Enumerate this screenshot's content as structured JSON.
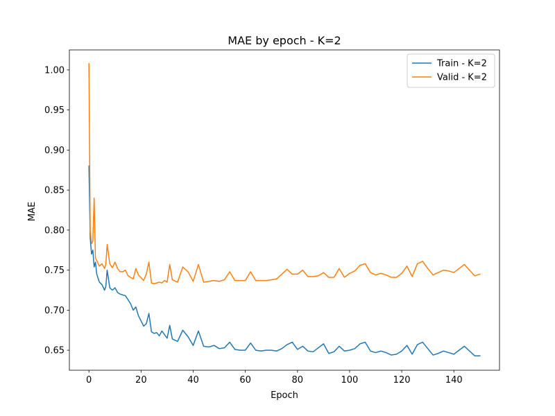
{
  "chart_data": {
    "type": "line",
    "title": "MAE by epoch - K=2",
    "xlabel": "Epoch",
    "ylabel": "MAE",
    "xlim": [
      -7.5,
      157.5
    ],
    "ylim": [
      0.625,
      1.025
    ],
    "xticks": [
      0,
      20,
      40,
      60,
      80,
      100,
      120,
      140
    ],
    "yticks": [
      0.65,
      0.7,
      0.75,
      0.8,
      0.85,
      0.9,
      0.95,
      1.0
    ],
    "ytick_labels": [
      "0.65",
      "0.70",
      "0.75",
      "0.80",
      "0.85",
      "0.90",
      "0.95",
      "1.00"
    ],
    "grid": false,
    "legend_position": "upper right",
    "series": [
      {
        "name": "Train - K=2",
        "color": "#1f77b4",
        "points": [
          [
            0,
            0.88
          ],
          [
            0.5,
            0.79
          ],
          [
            1,
            0.77
          ],
          [
            1.5,
            0.775
          ],
          [
            2,
            0.754
          ],
          [
            2.5,
            0.76
          ],
          [
            3,
            0.745
          ],
          [
            4,
            0.735
          ],
          [
            5,
            0.732
          ],
          [
            6,
            0.725
          ],
          [
            6.5,
            0.73
          ],
          [
            7,
            0.75
          ],
          [
            8,
            0.728
          ],
          [
            9,
            0.725
          ],
          [
            10,
            0.728
          ],
          [
            11,
            0.722
          ],
          [
            12,
            0.72
          ],
          [
            14,
            0.718
          ],
          [
            16,
            0.708
          ],
          [
            17,
            0.7
          ],
          [
            18,
            0.704
          ],
          [
            19,
            0.693
          ],
          [
            21,
            0.68
          ],
          [
            22,
            0.683
          ],
          [
            23,
            0.696
          ],
          [
            24,
            0.673
          ],
          [
            25,
            0.671
          ],
          [
            26,
            0.672
          ],
          [
            27,
            0.668
          ],
          [
            28,
            0.674
          ],
          [
            30,
            0.665
          ],
          [
            31,
            0.681
          ],
          [
            32,
            0.664
          ],
          [
            34,
            0.661
          ],
          [
            36,
            0.675
          ],
          [
            38,
            0.667
          ],
          [
            40,
            0.656
          ],
          [
            42,
            0.674
          ],
          [
            44,
            0.655
          ],
          [
            46,
            0.654
          ],
          [
            48,
            0.656
          ],
          [
            50,
            0.652
          ],
          [
            52,
            0.653
          ],
          [
            54,
            0.66
          ],
          [
            56,
            0.651
          ],
          [
            58,
            0.65
          ],
          [
            60,
            0.65
          ],
          [
            62,
            0.659
          ],
          [
            64,
            0.65
          ],
          [
            66,
            0.649
          ],
          [
            68,
            0.65
          ],
          [
            70,
            0.65
          ],
          [
            72,
            0.649
          ],
          [
            74,
            0.652
          ],
          [
            76,
            0.657
          ],
          [
            78,
            0.66
          ],
          [
            80,
            0.651
          ],
          [
            82,
            0.655
          ],
          [
            84,
            0.649
          ],
          [
            86,
            0.648
          ],
          [
            88,
            0.653
          ],
          [
            90,
            0.658
          ],
          [
            92,
            0.646
          ],
          [
            94,
            0.648
          ],
          [
            96,
            0.655
          ],
          [
            98,
            0.649
          ],
          [
            100,
            0.65
          ],
          [
            102,
            0.652
          ],
          [
            104,
            0.658
          ],
          [
            106,
            0.66
          ],
          [
            108,
            0.649
          ],
          [
            110,
            0.647
          ],
          [
            112,
            0.649
          ],
          [
            114,
            0.647
          ],
          [
            116,
            0.644
          ],
          [
            118,
            0.645
          ],
          [
            120,
            0.649
          ],
          [
            122,
            0.656
          ],
          [
            124,
            0.645
          ],
          [
            126,
            0.657
          ],
          [
            128,
            0.66
          ],
          [
            130,
            0.652
          ],
          [
            132,
            0.644
          ],
          [
            134,
            0.646
          ],
          [
            136,
            0.649
          ],
          [
            138,
            0.647
          ],
          [
            140,
            0.645
          ],
          [
            142,
            0.65
          ],
          [
            144,
            0.655
          ],
          [
            146,
            0.649
          ],
          [
            148,
            0.643
          ],
          [
            150,
            0.643
          ]
        ]
      },
      {
        "name": "Valid - K=2",
        "color": "#ff7f0e",
        "points": [
          [
            0,
            1.008
          ],
          [
            0.5,
            0.8
          ],
          [
            1,
            0.783
          ],
          [
            1.5,
            0.786
          ],
          [
            2,
            0.84
          ],
          [
            2.5,
            0.765
          ],
          [
            3,
            0.762
          ],
          [
            4,
            0.755
          ],
          [
            5,
            0.758
          ],
          [
            6,
            0.752
          ],
          [
            6.5,
            0.758
          ],
          [
            7,
            0.782
          ],
          [
            8,
            0.758
          ],
          [
            9,
            0.753
          ],
          [
            10,
            0.76
          ],
          [
            11,
            0.752
          ],
          [
            12,
            0.748
          ],
          [
            13,
            0.748
          ],
          [
            14,
            0.75
          ],
          [
            15,
            0.743
          ],
          [
            17,
            0.739
          ],
          [
            18,
            0.752
          ],
          [
            19,
            0.744
          ],
          [
            21,
            0.737
          ],
          [
            22,
            0.745
          ],
          [
            23,
            0.76
          ],
          [
            24,
            0.734
          ],
          [
            25,
            0.733
          ],
          [
            26,
            0.734
          ],
          [
            27,
            0.735
          ],
          [
            28,
            0.734
          ],
          [
            29,
            0.737
          ],
          [
            30,
            0.735
          ],
          [
            31,
            0.757
          ],
          [
            32,
            0.738
          ],
          [
            34,
            0.735
          ],
          [
            36,
            0.754
          ],
          [
            38,
            0.748
          ],
          [
            40,
            0.736
          ],
          [
            42,
            0.757
          ],
          [
            44,
            0.735
          ],
          [
            46,
            0.736
          ],
          [
            48,
            0.737
          ],
          [
            50,
            0.736
          ],
          [
            52,
            0.738
          ],
          [
            54,
            0.748
          ],
          [
            56,
            0.737
          ],
          [
            58,
            0.737
          ],
          [
            60,
            0.737
          ],
          [
            62,
            0.748
          ],
          [
            64,
            0.737
          ],
          [
            66,
            0.737
          ],
          [
            68,
            0.737
          ],
          [
            70,
            0.738
          ],
          [
            72,
            0.739
          ],
          [
            74,
            0.745
          ],
          [
            76,
            0.751
          ],
          [
            78,
            0.745
          ],
          [
            80,
            0.745
          ],
          [
            82,
            0.75
          ],
          [
            84,
            0.742
          ],
          [
            86,
            0.742
          ],
          [
            88,
            0.743
          ],
          [
            90,
            0.747
          ],
          [
            92,
            0.741
          ],
          [
            94,
            0.741
          ],
          [
            96,
            0.752
          ],
          [
            98,
            0.741
          ],
          [
            100,
            0.746
          ],
          [
            102,
            0.749
          ],
          [
            104,
            0.756
          ],
          [
            106,
            0.758
          ],
          [
            108,
            0.747
          ],
          [
            110,
            0.744
          ],
          [
            112,
            0.746
          ],
          [
            114,
            0.744
          ],
          [
            116,
            0.741
          ],
          [
            118,
            0.741
          ],
          [
            120,
            0.746
          ],
          [
            122,
            0.755
          ],
          [
            124,
            0.742
          ],
          [
            126,
            0.758
          ],
          [
            128,
            0.761
          ],
          [
            130,
            0.752
          ],
          [
            132,
            0.744
          ],
          [
            134,
            0.747
          ],
          [
            136,
            0.75
          ],
          [
            138,
            0.749
          ],
          [
            140,
            0.747
          ],
          [
            142,
            0.752
          ],
          [
            144,
            0.757
          ],
          [
            146,
            0.75
          ],
          [
            148,
            0.743
          ],
          [
            150,
            0.745
          ]
        ]
      }
    ]
  }
}
